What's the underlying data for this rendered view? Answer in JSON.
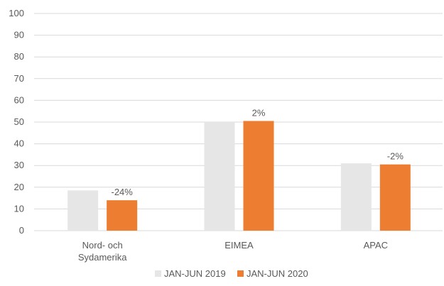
{
  "chart_data": {
    "type": "bar",
    "title": "",
    "xlabel": "",
    "ylabel": "",
    "ylim": [
      0,
      100
    ],
    "yticks": [
      0,
      10,
      20,
      30,
      40,
      50,
      60,
      70,
      80,
      90,
      100
    ],
    "grid": true,
    "legend_position": "bottom",
    "categories": [
      [
        "Nord- och",
        "Sydamerika"
      ],
      [
        "EIMEA"
      ],
      [
        "APAC"
      ]
    ],
    "series": [
      {
        "name": "JAN-JUN 2019",
        "color": "#e7e6e6",
        "values": [
          18.5,
          50,
          31
        ]
      },
      {
        "name": "JAN-JUN 2020",
        "color": "#ed7d31",
        "values": [
          14,
          50.5,
          30.5
        ]
      }
    ],
    "data_labels": [
      "-24%",
      "2%",
      "-2%"
    ]
  }
}
